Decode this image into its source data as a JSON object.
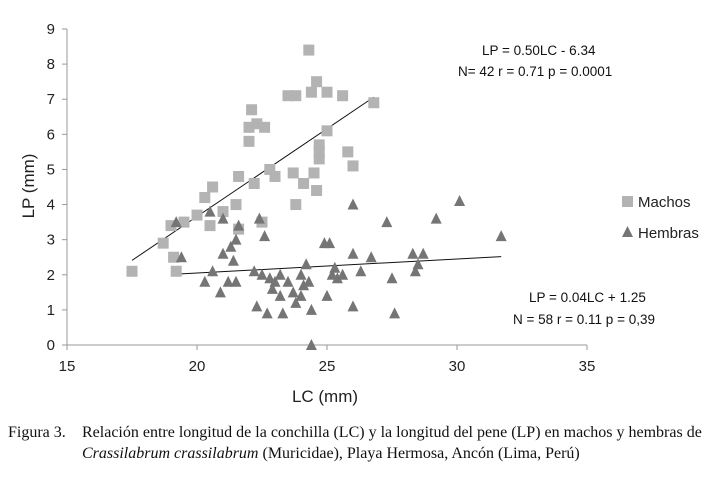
{
  "chart_data": {
    "type": "scatter",
    "xlabel": "LC (mm)",
    "ylabel": "LP (mm)",
    "xlim": [
      15,
      35
    ],
    "ylim": [
      0,
      9
    ],
    "xticks": [
      "15",
      "20",
      "25",
      "30",
      "35"
    ],
    "yticks": [
      "0",
      "1",
      "2",
      "3",
      "4",
      "5",
      "6",
      "7",
      "8",
      "9"
    ],
    "grid": false,
    "legend_position": "right",
    "series": [
      {
        "name": "Machos",
        "marker": "square",
        "color": "#b3b3b3",
        "points": [
          [
            17.5,
            2.1
          ],
          [
            18.7,
            2.9
          ],
          [
            19.0,
            3.4
          ],
          [
            19.2,
            2.1
          ],
          [
            19.5,
            3.5
          ],
          [
            20.0,
            3.7
          ],
          [
            20.3,
            4.2
          ],
          [
            20.6,
            4.5
          ],
          [
            21.0,
            3.8
          ],
          [
            21.5,
            4.0
          ],
          [
            21.6,
            4.8
          ],
          [
            22.0,
            5.8
          ],
          [
            22.0,
            6.2
          ],
          [
            22.1,
            6.7
          ],
          [
            22.3,
            6.3
          ],
          [
            22.2,
            4.6
          ],
          [
            22.6,
            6.2
          ],
          [
            22.8,
            5.0
          ],
          [
            23.0,
            4.8
          ],
          [
            23.5,
            7.1
          ],
          [
            23.8,
            7.1
          ],
          [
            23.7,
            4.9
          ],
          [
            23.8,
            4.0
          ],
          [
            24.1,
            4.6
          ],
          [
            24.3,
            8.4
          ],
          [
            24.4,
            7.2
          ],
          [
            24.5,
            4.9
          ],
          [
            24.6,
            7.5
          ],
          [
            24.6,
            4.4
          ],
          [
            24.7,
            5.3
          ],
          [
            24.7,
            5.5
          ],
          [
            24.7,
            5.7
          ],
          [
            25.0,
            7.2
          ],
          [
            25.0,
            6.1
          ],
          [
            25.6,
            7.1
          ],
          [
            25.8,
            5.5
          ],
          [
            26.0,
            5.1
          ],
          [
            26.8,
            6.9
          ],
          [
            21.6,
            3.3
          ],
          [
            22.5,
            3.5
          ],
          [
            19.1,
            2.5
          ],
          [
            20.5,
            3.4
          ]
        ]
      },
      {
        "name": "Hembras",
        "marker": "triangle",
        "color": "#757575",
        "points": [
          [
            19.2,
            3.5
          ],
          [
            19.4,
            2.5
          ],
          [
            20.3,
            1.8
          ],
          [
            20.5,
            3.8
          ],
          [
            20.6,
            2.1
          ],
          [
            20.9,
            1.5
          ],
          [
            21.0,
            2.6
          ],
          [
            21.0,
            3.6
          ],
          [
            21.2,
            1.8
          ],
          [
            21.3,
            2.8
          ],
          [
            21.4,
            2.4
          ],
          [
            21.5,
            1.8
          ],
          [
            21.5,
            3.0
          ],
          [
            21.6,
            3.4
          ],
          [
            22.2,
            2.1
          ],
          [
            22.3,
            1.1
          ],
          [
            22.4,
            3.6
          ],
          [
            22.5,
            2.0
          ],
          [
            22.6,
            3.1
          ],
          [
            22.7,
            0.9
          ],
          [
            22.8,
            1.9
          ],
          [
            22.9,
            1.6
          ],
          [
            23.0,
            1.8
          ],
          [
            23.2,
            2.0
          ],
          [
            23.2,
            1.4
          ],
          [
            23.3,
            0.9
          ],
          [
            23.5,
            1.8
          ],
          [
            23.7,
            1.5
          ],
          [
            23.8,
            1.2
          ],
          [
            24.0,
            2.0
          ],
          [
            24.0,
            1.4
          ],
          [
            24.1,
            1.7
          ],
          [
            24.2,
            2.3
          ],
          [
            24.3,
            1.8
          ],
          [
            24.4,
            1.0
          ],
          [
            24.4,
            0.0
          ],
          [
            24.9,
            2.9
          ],
          [
            25.0,
            1.4
          ],
          [
            25.1,
            2.9
          ],
          [
            25.2,
            2.0
          ],
          [
            25.3,
            2.2
          ],
          [
            25.4,
            1.9
          ],
          [
            25.6,
            2.0
          ],
          [
            26.0,
            2.6
          ],
          [
            26.0,
            1.1
          ],
          [
            26.0,
            4.0
          ],
          [
            26.3,
            2.1
          ],
          [
            26.7,
            2.5
          ],
          [
            27.3,
            3.5
          ],
          [
            27.5,
            1.9
          ],
          [
            27.6,
            0.9
          ],
          [
            28.3,
            2.6
          ],
          [
            28.4,
            2.1
          ],
          [
            28.5,
            2.3
          ],
          [
            28.7,
            2.6
          ],
          [
            29.2,
            3.6
          ],
          [
            30.1,
            4.1
          ],
          [
            31.7,
            3.1
          ]
        ]
      }
    ],
    "trendlines": [
      {
        "series": "Machos",
        "slope": 0.5,
        "intercept": -6.34,
        "x_range": [
          17.5,
          26.8
        ]
      },
      {
        "series": "Hembras",
        "slope": 0.04,
        "intercept": 1.25,
        "x_range": [
          19.3,
          31.7
        ]
      }
    ],
    "annotations": {
      "machos_eq": "LP = 0.50LC - 6.34",
      "machos_stats": "N= 42 r = 0.71 p = 0.0001",
      "hembras_eq": "LP = 0.04LC + 1.25",
      "hembras_stats": "N = 58 r = 0.11 p = 0,39"
    }
  },
  "caption": {
    "label": "Figura 3.",
    "text_before": "Relación entre longitud de la conchilla (LC) y la longitud del pene (LP) en machos y hembras de ",
    "species": "Crassilabrum crassilabrum",
    "text_after": " (Muricidae), Playa Hermosa, Ancón (Lima, Perú)"
  }
}
